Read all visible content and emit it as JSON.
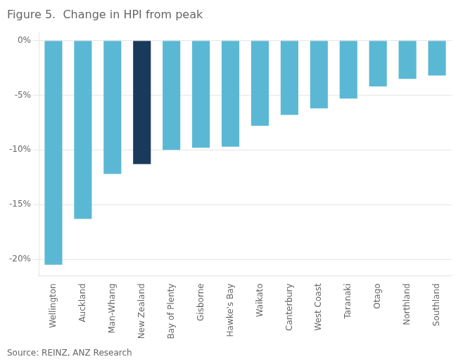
{
  "chart_data": {
    "type": "bar",
    "title": "Figure 5.  Change in HPI from peak",
    "categories": [
      "Wellington",
      "Auckland",
      "Man-Whang",
      "New Zealand",
      "Bay of Plenty",
      "Gisborne",
      "Hawke's Bay",
      "Waikato",
      "Canterbury",
      "West Coast",
      "Taranaki",
      "Otago",
      "Northland",
      "Southland"
    ],
    "values": [
      -20.5,
      -16.3,
      -12.2,
      -11.3,
      -10.0,
      -9.8,
      -9.7,
      -7.8,
      -6.8,
      -6.2,
      -5.3,
      -4.2,
      -3.5,
      -3.2
    ],
    "colors": [
      "#5bb8d4",
      "#5bb8d4",
      "#5bb8d4",
      "#1a3a5c",
      "#5bb8d4",
      "#5bb8d4",
      "#5bb8d4",
      "#5bb8d4",
      "#5bb8d4",
      "#5bb8d4",
      "#5bb8d4",
      "#5bb8d4",
      "#5bb8d4",
      "#5bb8d4"
    ],
    "ylim": [
      -21.5,
      0.8
    ],
    "yticks": [
      {
        "value": 0,
        "label": "0%"
      },
      {
        "value": -5,
        "label": "-5%"
      },
      {
        "value": -10,
        "label": "-10%"
      },
      {
        "value": -15,
        "label": "-15%"
      },
      {
        "value": -20,
        "label": "-20%"
      }
    ],
    "grid": "y",
    "annotations": [
      "Source: REINZ, ANZ Research"
    ]
  }
}
